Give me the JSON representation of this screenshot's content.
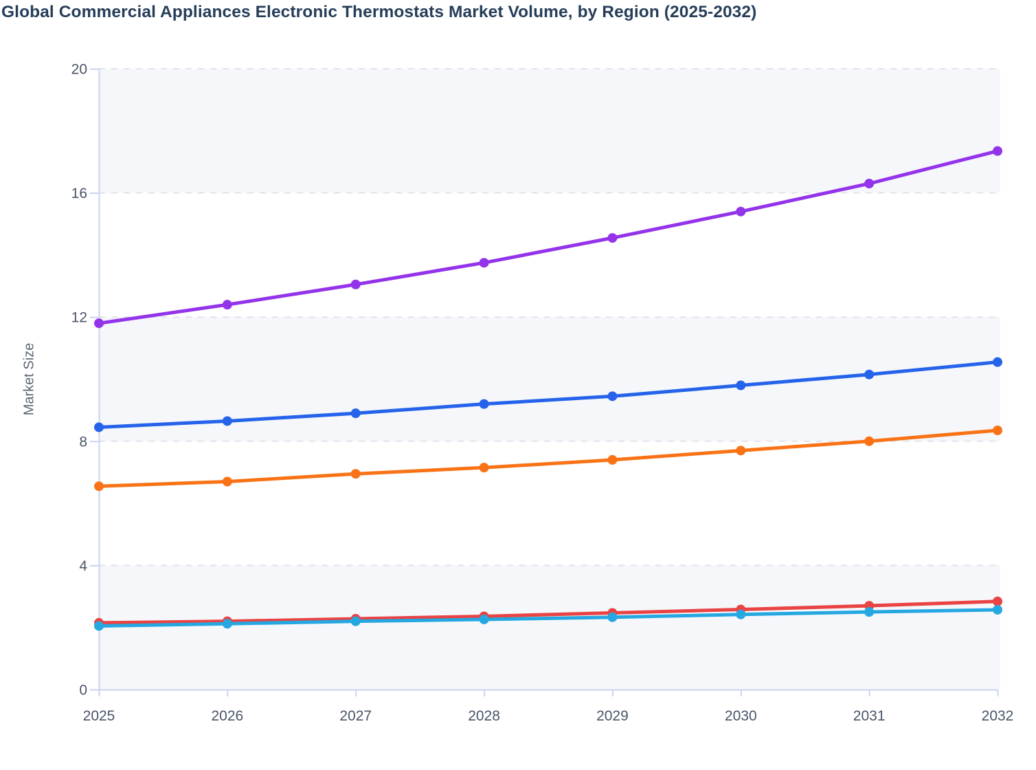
{
  "header": {
    "title": "Global Commercial Appliances Electronic Thermostats Market Volume, by Region (2025-2032)"
  },
  "chart_data": {
    "type": "line",
    "title": "Global Commercial Appliances Electronic Thermostats Market Volume, by Region (2025-2032)",
    "xlabel": "",
    "ylabel": "Market Size",
    "x": [
      "2025",
      "2026",
      "2027",
      "2028",
      "2029",
      "2030",
      "2031",
      "2032"
    ],
    "ylim": [
      0,
      20
    ],
    "yticks": [
      0,
      4,
      8,
      12,
      16,
      20
    ],
    "grid": "horizontal-dashed",
    "plot_bands": "alternating-horizontal",
    "legend_position": "none",
    "marker": "circle",
    "series": [
      {
        "name": "purple-series",
        "color": "#9333ea",
        "values": [
          11.8,
          12.4,
          13.05,
          13.75,
          14.55,
          15.4,
          16.3,
          17.35
        ]
      },
      {
        "name": "blue-series",
        "color": "#2563eb",
        "values": [
          8.45,
          8.65,
          8.9,
          9.2,
          9.45,
          9.8,
          10.15,
          10.55
        ]
      },
      {
        "name": "orange-series",
        "color": "#f97316",
        "values": [
          6.55,
          6.7,
          6.95,
          7.15,
          7.4,
          7.7,
          8.0,
          8.35
        ]
      },
      {
        "name": "red-series",
        "color": "#e94343",
        "values": [
          2.15,
          2.2,
          2.28,
          2.36,
          2.47,
          2.58,
          2.7,
          2.84
        ]
      },
      {
        "name": "cyan-series",
        "color": "#25a8e2",
        "values": [
          2.05,
          2.12,
          2.2,
          2.26,
          2.33,
          2.42,
          2.5,
          2.57
        ]
      }
    ]
  },
  "style_colors": {
    "title_text": "#263d59",
    "tick_text": "#4a5568",
    "ylabel_text": "#5c6575",
    "axis_line": "#c9d3f2",
    "gridline": "#e2e2ea",
    "band_fill": "#f6f7fb",
    "background": "#ffffff"
  }
}
